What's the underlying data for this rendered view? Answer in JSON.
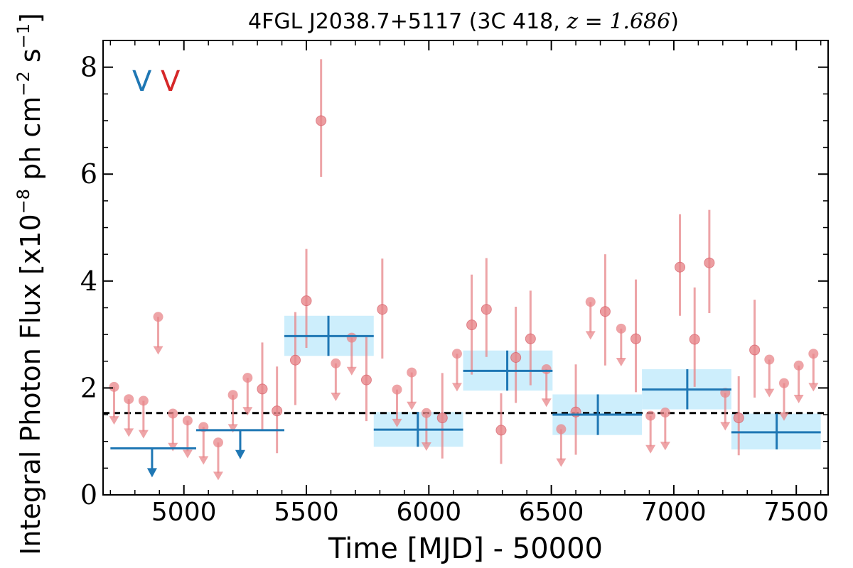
{
  "chart_data": {
    "type": "scatter",
    "title_text": "4FGL J2038.7+5117 (3C 418, ",
    "title_math": "z = 1.686",
    "title_close": ")",
    "xlabel": "Time [MJD] - 50000",
    "ylabel_main": "Integral Photon Flux [x10",
    "ylabel_exp1": "−8",
    "ylabel_mid": " ph cm",
    "ylabel_exp2": "−2",
    "ylabel_end": " s",
    "ylabel_exp3": "−1",
    "ylabel_close": "]",
    "xlim": [
      4670,
      7630
    ],
    "ylim": [
      0,
      8.5
    ],
    "x_ticks": [
      5000,
      5500,
      6000,
      6500,
      7000,
      7500
    ],
    "y_ticks": [
      0,
      2,
      4,
      6,
      8
    ],
    "tick_labels_x": [
      "5000",
      "5500",
      "6000",
      "6500",
      "7000",
      "7500"
    ],
    "tick_labels_y": [
      "0",
      "2",
      "4",
      "6",
      "8"
    ],
    "legend_markers": [
      {
        "label": "V",
        "color": "#1f77b4"
      },
      {
        "label": "V",
        "color": "#d62728"
      }
    ],
    "mean_flux": 1.53,
    "colors": {
      "monthly": "#e8868a",
      "yearly": "#1f77b4",
      "yearly_band": "#cdeefc",
      "mean_line": "#000000"
    },
    "series": [
      {
        "name": "monthly",
        "points": [
          {
            "x": 5560,
            "y": 7.0,
            "ylo": 5.95,
            "yhi": 8.15
          },
          {
            "x": 5500,
            "y": 3.63,
            "ylo": 2.75,
            "yhi": 4.6
          },
          {
            "x": 5455,
            "y": 2.52,
            "ylo": 1.68,
            "yhi": 3.42
          },
          {
            "x": 5320,
            "y": 1.98,
            "ylo": 1.22,
            "yhi": 2.85
          },
          {
            "x": 5380,
            "y": 1.57,
            "ylo": 0.78,
            "yhi": 2.4
          },
          {
            "x": 5745,
            "y": 2.15,
            "ylo": 1.38,
            "yhi": 2.95
          },
          {
            "x": 5810,
            "y": 3.47,
            "ylo": 2.55,
            "yhi": 4.42
          },
          {
            "x": 6055,
            "y": 1.44,
            "ylo": 0.68,
            "yhi": 2.28
          },
          {
            "x": 6175,
            "y": 3.18,
            "ylo": 2.25,
            "yhi": 4.12
          },
          {
            "x": 6235,
            "y": 3.47,
            "ylo": 2.58,
            "yhi": 4.43
          },
          {
            "x": 6295,
            "y": 1.21,
            "ylo": 0.58,
            "yhi": 1.9
          },
          {
            "x": 6355,
            "y": 2.57,
            "ylo": 1.72,
            "yhi": 3.52
          },
          {
            "x": 6415,
            "y": 2.92,
            "ylo": 2.05,
            "yhi": 3.82
          },
          {
            "x": 6600,
            "y": 1.55,
            "ylo": 0.75,
            "yhi": 2.44
          },
          {
            "x": 6720,
            "y": 3.43,
            "ylo": 2.42,
            "yhi": 4.5
          },
          {
            "x": 6845,
            "y": 2.92,
            "ylo": 1.92,
            "yhi": 4.03
          },
          {
            "x": 7025,
            "y": 4.26,
            "ylo": 3.35,
            "yhi": 5.25
          },
          {
            "x": 7085,
            "y": 2.91,
            "ylo": 2.02,
            "yhi": 3.88
          },
          {
            "x": 7145,
            "y": 4.34,
            "ylo": 3.4,
            "yhi": 5.33
          },
          {
            "x": 7265,
            "y": 1.44,
            "ylo": 0.74,
            "yhi": 2.22
          },
          {
            "x": 7330,
            "y": 2.71,
            "ylo": 1.82,
            "yhi": 3.65
          }
        ]
      },
      {
        "name": "monthly_ul",
        "points": [
          {
            "x": 4715,
            "y": 2.02
          },
          {
            "x": 4775,
            "y": 1.79
          },
          {
            "x": 4835,
            "y": 1.76
          },
          {
            "x": 4895,
            "y": 3.33
          },
          {
            "x": 4955,
            "y": 1.52
          },
          {
            "x": 5015,
            "y": 1.39
          },
          {
            "x": 5080,
            "y": 1.27
          },
          {
            "x": 5140,
            "y": 0.98
          },
          {
            "x": 5200,
            "y": 1.87
          },
          {
            "x": 5260,
            "y": 2.19
          },
          {
            "x": 5620,
            "y": 2.46
          },
          {
            "x": 5685,
            "y": 2.94
          },
          {
            "x": 5870,
            "y": 1.97
          },
          {
            "x": 5930,
            "y": 2.29
          },
          {
            "x": 5990,
            "y": 1.53
          },
          {
            "x": 6115,
            "y": 2.64
          },
          {
            "x": 6480,
            "y": 2.35
          },
          {
            "x": 6540,
            "y": 1.23
          },
          {
            "x": 6660,
            "y": 3.61
          },
          {
            "x": 6785,
            "y": 3.11
          },
          {
            "x": 6905,
            "y": 1.48
          },
          {
            "x": 6965,
            "y": 1.54
          },
          {
            "x": 7210,
            "y": 1.91
          },
          {
            "x": 7390,
            "y": 2.53
          },
          {
            "x": 7450,
            "y": 2.09
          },
          {
            "x": 7510,
            "y": 2.42
          },
          {
            "x": 7570,
            "y": 2.64
          }
        ]
      },
      {
        "name": "yearly",
        "points": [
          {
            "x0": 5410,
            "x1": 5775,
            "xc": 5590,
            "y": 2.97,
            "ylo": 2.6,
            "yhi": 3.35
          },
          {
            "x0": 5775,
            "x1": 6140,
            "xc": 5955,
            "y": 1.22,
            "ylo": 0.9,
            "yhi": 1.55
          },
          {
            "x0": 6140,
            "x1": 6505,
            "xc": 6320,
            "y": 2.32,
            "ylo": 1.95,
            "yhi": 2.7
          },
          {
            "x0": 6505,
            "x1": 6870,
            "xc": 6690,
            "y": 1.5,
            "ylo": 1.12,
            "yhi": 1.88
          },
          {
            "x0": 6870,
            "x1": 7235,
            "xc": 7055,
            "y": 1.97,
            "ylo": 1.6,
            "yhi": 2.35
          },
          {
            "x0": 7235,
            "x1": 7600,
            "xc": 7420,
            "y": 1.17,
            "ylo": 0.85,
            "yhi": 1.52
          }
        ]
      },
      {
        "name": "yearly_ul",
        "points": [
          {
            "x0": 4700,
            "x1": 5050,
            "xc": 4870,
            "y": 0.87
          },
          {
            "x0": 5050,
            "x1": 5410,
            "xc": 5230,
            "y": 1.21
          }
        ]
      }
    ]
  }
}
